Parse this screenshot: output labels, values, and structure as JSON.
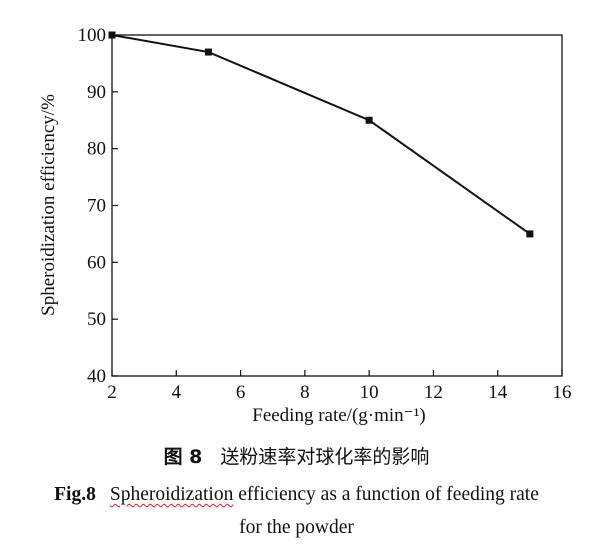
{
  "chart_data": {
    "type": "line",
    "x": [
      2,
      5,
      10,
      15
    ],
    "series": [
      {
        "values": [
          100,
          97,
          85,
          65
        ],
        "marker": "square",
        "color": "#111111"
      }
    ],
    "xlabel": "Feeding rate/(g·min⁻¹)",
    "ylabel": "Spheroidization efficiency/%",
    "xlim": [
      2,
      16
    ],
    "ylim": [
      40,
      100
    ],
    "xticks": [
      2,
      4,
      6,
      8,
      10,
      12,
      14,
      16
    ],
    "yticks": [
      40,
      50,
      60,
      70,
      80,
      90,
      100
    ],
    "grid": false,
    "legend": "none"
  },
  "caption": {
    "cn_num": "图 8",
    "cn_text": "送粉速率对球化率的影响",
    "en_num": "Fig.8",
    "en_word_underlined": "Spheroidization",
    "en_rest_line1": "efficiency as a function of feeding rate",
    "en_line2": "for the powder"
  }
}
